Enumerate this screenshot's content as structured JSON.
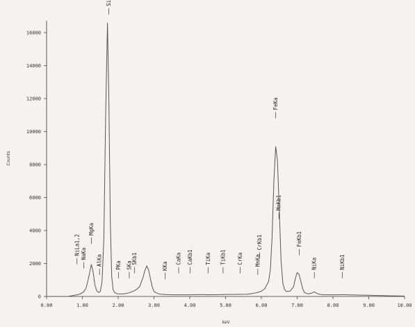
{
  "chart_data": {
    "type": "line",
    "title": "",
    "xlabel": "keV",
    "ylabel": "Counts",
    "xlim": [
      0,
      10
    ],
    "ylim": [
      0,
      16000
    ],
    "grid": false,
    "x_ticks": [
      "0.00",
      "1.00",
      "2.00",
      "3.00",
      "4.00",
      "5.00",
      "6.00",
      "7.00",
      "8.00",
      "9.00",
      "10.00"
    ],
    "y_ticks": [
      "0",
      "2000",
      "4000",
      "6000",
      "8000",
      "10000",
      "12000",
      "14000",
      "16000"
    ],
    "series": [
      {
        "x": [
          0.0,
          0.2,
          0.4,
          0.6,
          0.8,
          0.9,
          1.0,
          1.05,
          1.1,
          1.15,
          1.2,
          1.25,
          1.3,
          1.35,
          1.4,
          1.45,
          1.5,
          1.55,
          1.6,
          1.65,
          1.7,
          1.74,
          1.78,
          1.82,
          1.86,
          1.9,
          1.95,
          2.0,
          2.1,
          2.2,
          2.3,
          2.4,
          2.5,
          2.6,
          2.7,
          2.75,
          2.8,
          2.85,
          2.9,
          2.95,
          3.0,
          3.1,
          3.2,
          3.4,
          3.6,
          3.8,
          4.0,
          4.2,
          4.4,
          4.6,
          4.8,
          5.0,
          5.2,
          5.4,
          5.6,
          5.7,
          5.8,
          5.9,
          6.0,
          6.1,
          6.2,
          6.25,
          6.3,
          6.35,
          6.4,
          6.45,
          6.5,
          6.55,
          6.6,
          6.65,
          6.7,
          6.8,
          6.9,
          6.95,
          7.0,
          7.05,
          7.1,
          7.15,
          7.2,
          7.3,
          7.4,
          7.48,
          7.55,
          7.65,
          7.8,
          8.0,
          8.2,
          8.26,
          8.4,
          8.6,
          8.8,
          9.0,
          9.2,
          9.4,
          9.6,
          9.8,
          10.0
        ],
        "values": [
          0,
          0,
          0,
          0,
          80,
          120,
          220,
          320,
          500,
          900,
          1400,
          1950,
          1500,
          700,
          350,
          250,
          300,
          900,
          3500,
          11000,
          16600,
          12000,
          4500,
          1200,
          400,
          250,
          180,
          150,
          150,
          170,
          220,
          300,
          400,
          600,
          1200,
          1600,
          1850,
          1600,
          1100,
          600,
          300,
          180,
          130,
          110,
          100,
          100,
          100,
          110,
          110,
          100,
          110,
          120,
          120,
          130,
          140,
          160,
          200,
          250,
          320,
          480,
          900,
          1600,
          3600,
          7000,
          9100,
          8200,
          5200,
          2200,
          800,
          400,
          300,
          320,
          600,
          1100,
          1450,
          1350,
          950,
          500,
          250,
          150,
          200,
          280,
          180,
          120,
          100,
          100,
          100,
          110,
          100,
          90,
          80,
          70,
          60,
          50,
          40,
          30,
          20
        ]
      }
    ],
    "annotations": [
      {
        "label": "NiLa1,2",
        "x": 0.85,
        "top": 1950
      },
      {
        "label": "NaKa",
        "x": 1.04,
        "top": 1700
      },
      {
        "label": "MgKa",
        "x": 1.25,
        "top": 3200
      },
      {
        "label": "AlKa",
        "x": 1.48,
        "top": 1300
      },
      {
        "label": "SiKa",
        "x": 1.74,
        "top": 17100
      },
      {
        "label": "PKa",
        "x": 2.01,
        "top": 1100
      },
      {
        "label": "SKa",
        "x": 2.31,
        "top": 1100
      },
      {
        "label": "SKb1",
        "x": 2.46,
        "top": 1400
      },
      {
        "label": "KKa",
        "x": 3.31,
        "top": 1050
      },
      {
        "label": "CaKa",
        "x": 3.69,
        "top": 1400
      },
      {
        "label": "CaKb1",
        "x": 4.01,
        "top": 1400
      },
      {
        "label": "TiKa",
        "x": 4.51,
        "top": 1400
      },
      {
        "label": "TiKb1",
        "x": 4.93,
        "top": 1400
      },
      {
        "label": "CrKa",
        "x": 5.41,
        "top": 1400
      },
      {
        "label": "MnKa",
        "x": 5.9,
        "top": 1300
      },
      {
        "label": "CrKb1",
        "x": 5.95,
        "top": 2300
      },
      {
        "label": "FeKa",
        "x": 6.4,
        "top": 10800
      },
      {
        "label": "MnKb1",
        "x": 6.49,
        "top": 4700
      },
      {
        "label": "FeKb1",
        "x": 7.06,
        "top": 2500
      },
      {
        "label": "NiKa",
        "x": 7.48,
        "top": 1100
      },
      {
        "label": "NiKb1",
        "x": 8.26,
        "top": 1100
      }
    ]
  }
}
